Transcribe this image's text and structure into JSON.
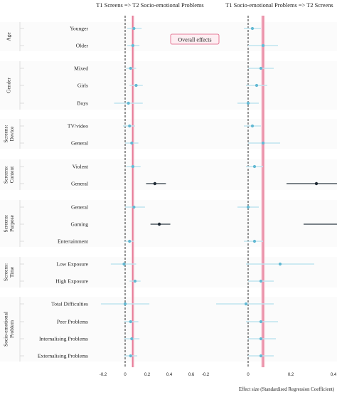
{
  "chart_data": {
    "type": "forest",
    "annotation": "Overall effects",
    "xlabel": "Effect size (Standardised Regression Coefficient)",
    "xlim": [
      -0.25,
      0.65
    ],
    "xticks": [
      -0.2,
      0,
      0.2,
      0.4,
      0.6
    ],
    "xtick_labels": [
      "-0.2",
      "0",
      "0.2",
      "0.4",
      "0.6"
    ],
    "reference_line": 0,
    "overall_effect": {
      "value": 0.07,
      "ci": [
        0.065,
        0.075
      ]
    },
    "colors": {
      "point": "#63b9d3",
      "ci": "#bfe4ef",
      "highlight": "#1f2a34",
      "highlight_ci": "#2c3a44",
      "overall": "#e05a7d",
      "overall_band": "#f6c6d3",
      "reference": "#111111"
    },
    "groups": [
      {
        "label": "Age",
        "rows": [
          "Younger",
          "Older"
        ]
      },
      {
        "label": "Gender",
        "rows": [
          "Mixed",
          "Girls",
          "Boys"
        ]
      },
      {
        "label": "Screens:\nDevice",
        "rows": [
          "TV/video",
          "General"
        ]
      },
      {
        "label": "Screens:\nContent",
        "rows": [
          "Violent",
          "General"
        ]
      },
      {
        "label": "Screens:\nPurpose",
        "rows": [
          "General",
          "Gaming",
          "Entertainment"
        ]
      },
      {
        "label": "Screens:\nTime",
        "rows": [
          "Low Exposure",
          "High Exposure"
        ]
      },
      {
        "label": "Socio-emotional\nProblem",
        "rows": [
          "Total Difficulties",
          "Peer Problems",
          "Internalising Problems",
          "Externalising Problems"
        ]
      }
    ],
    "panels": [
      {
        "title": "T1 Screens => T2 Socio-emotional Problems",
        "estimates": [
          {
            "y": "Younger",
            "est": 0.08,
            "lo": 0.02,
            "hi": 0.15
          },
          {
            "y": "Older",
            "est": 0.07,
            "lo": 0.02,
            "hi": 0.13
          },
          {
            "y": "Mixed",
            "est": 0.05,
            "lo": 0.01,
            "hi": 0.1
          },
          {
            "y": "Girls",
            "est": 0.1,
            "lo": 0.04,
            "hi": 0.16
          },
          {
            "y": "Boys",
            "est": 0.03,
            "lo": -0.1,
            "hi": 0.16
          },
          {
            "y": "TV/video",
            "est": 0.04,
            "lo": -0.02,
            "hi": 0.09
          },
          {
            "y": "General (Device)",
            "est": 0.06,
            "lo": 0.0,
            "hi": 0.12
          },
          {
            "y": "Violent",
            "est": 0.07,
            "lo": 0.01,
            "hi": 0.14
          },
          {
            "y": "General (Content)",
            "est": 0.27,
            "lo": 0.19,
            "hi": 0.37,
            "highlight": true
          },
          {
            "y": "General (Purpose)",
            "est": 0.08,
            "lo": 0.0,
            "hi": 0.18
          },
          {
            "y": "Gaming",
            "est": 0.31,
            "lo": 0.23,
            "hi": 0.41,
            "highlight": true
          },
          {
            "y": "Entertainment",
            "est": 0.04,
            "lo": -0.01,
            "hi": 0.08
          },
          {
            "y": "Low Exposure",
            "est": -0.01,
            "lo": -0.13,
            "hi": 0.1
          },
          {
            "y": "High Exposure",
            "est": 0.09,
            "lo": 0.04,
            "hi": 0.14
          },
          {
            "y": "Total Difficulties",
            "est": 0.0,
            "lo": -0.22,
            "hi": 0.22
          },
          {
            "y": "Peer Problems",
            "est": 0.05,
            "lo": -0.01,
            "hi": 0.12
          },
          {
            "y": "Internalising Problems",
            "est": 0.06,
            "lo": -0.01,
            "hi": 0.13
          },
          {
            "y": "Externalising Problems",
            "est": 0.05,
            "lo": -0.01,
            "hi": 0.11
          }
        ]
      },
      {
        "title": "T1 Socio-emotional Problems => T2 Screens",
        "estimates": [
          {
            "y": "Younger",
            "est": 0.02,
            "lo": -0.02,
            "hi": 0.06
          },
          {
            "y": "Older",
            "est": 0.07,
            "lo": 0.0,
            "hi": 0.14
          },
          {
            "y": "Mixed",
            "est": 0.06,
            "lo": 0.0,
            "hi": 0.12
          },
          {
            "y": "Girls",
            "est": 0.04,
            "lo": -0.01,
            "hi": 0.09
          },
          {
            "y": "Boys",
            "est": 0.0,
            "lo": -0.05,
            "hi": 0.05
          },
          {
            "y": "TV/video",
            "est": 0.02,
            "lo": -0.02,
            "hi": 0.06
          },
          {
            "y": "General (Device)",
            "est": 0.07,
            "lo": 0.0,
            "hi": 0.15
          },
          {
            "y": "Violent",
            "est": 0.03,
            "lo": -0.01,
            "hi": 0.07
          },
          {
            "y": "General (Content)",
            "est": 0.32,
            "lo": 0.18,
            "hi": 0.46,
            "highlight": true
          },
          {
            "y": "General (Purpose)",
            "est": 0.0,
            "lo": -0.05,
            "hi": 0.05
          },
          {
            "y": "Gaming",
            "est": 0.43,
            "lo": 0.26,
            "hi": 0.6,
            "highlight": true
          },
          {
            "y": "Entertainment",
            "est": 0.03,
            "lo": -0.02,
            "hi": 0.07
          },
          {
            "y": "Low Exposure",
            "est": 0.15,
            "lo": -0.01,
            "hi": 0.31
          },
          {
            "y": "High Exposure",
            "est": 0.06,
            "lo": 0.0,
            "hi": 0.12
          },
          {
            "y": "Total Difficulties",
            "est": -0.01,
            "lo": -0.15,
            "hi": 0.12
          },
          {
            "y": "Peer Problems",
            "est": 0.06,
            "lo": -0.01,
            "hi": 0.14
          },
          {
            "y": "Internalising Problems",
            "est": 0.06,
            "lo": 0.0,
            "hi": 0.13
          },
          {
            "y": "Externalising Problems",
            "est": 0.06,
            "lo": 0.0,
            "hi": 0.12
          }
        ]
      }
    ]
  }
}
